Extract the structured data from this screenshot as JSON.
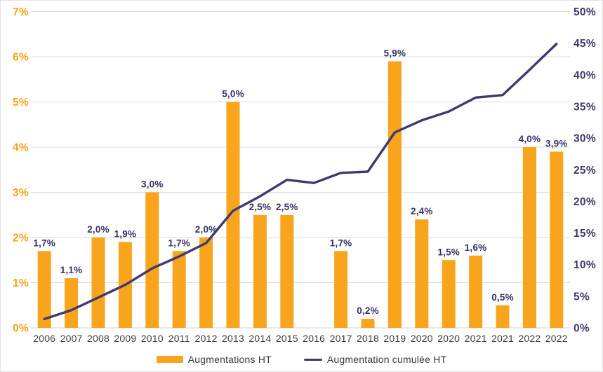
{
  "chart_data": {
    "type": "bar+line",
    "categories": [
      "2006",
      "2007",
      "2008",
      "2009",
      "2010",
      "2011",
      "2012",
      "2013",
      "2014",
      "2015",
      "2016",
      "2017",
      "2018",
      "2019",
      "2020",
      "2020",
      "2021",
      "2021",
      "2022",
      "2022"
    ],
    "series": [
      {
        "name": "Augmentations HT",
        "type": "bar",
        "axis": "left",
        "values": [
          1.7,
          1.1,
          2.0,
          1.9,
          3.0,
          1.7,
          2.0,
          5.0,
          2.5,
          2.5,
          0,
          1.7,
          0.2,
          5.9,
          2.4,
          1.5,
          1.6,
          0.5,
          4.0,
          3.9
        ],
        "data_labels": [
          "1,7%",
          "1,1%",
          "2,0%",
          "1,9%",
          "3,0%",
          "1,7%",
          "2,0%",
          "5,0%",
          "2,5%",
          "2,5%",
          "",
          "1,7%",
          "0,2%",
          "5,9%",
          "2,4%",
          "1,5%",
          "1,6%",
          "0,5%",
          "4,0%",
          "3,9%"
        ]
      },
      {
        "name": "Augmentation cumulée HT",
        "type": "line",
        "axis": "right",
        "values": [
          1.4,
          2.8,
          4.8,
          6.8,
          9.4,
          11.3,
          13.4,
          18.5,
          20.8,
          23.4,
          22.9,
          24.5,
          24.7,
          30.9,
          32.8,
          34.2,
          36.4,
          36.8,
          40.8,
          44.9
        ]
      }
    ],
    "left_axis": {
      "min": 0,
      "max": 7,
      "tick_labels": [
        "0%",
        "1%",
        "2%",
        "3%",
        "4%",
        "5%",
        "6%",
        "7%"
      ]
    },
    "right_axis": {
      "min": 0,
      "max": 50,
      "tick_labels": [
        "0%",
        "5%",
        "10%",
        "15%",
        "20%",
        "25%",
        "30%",
        "35%",
        "40%",
        "45%",
        "50%"
      ]
    },
    "grid": "horizontal-only",
    "legend_position": "bottom-center",
    "title": "",
    "xlabel": "",
    "ylabel": ""
  },
  "legend": {
    "bar_label": "Augmentations HT",
    "line_label": "Augmentation cumulée HT"
  },
  "colors": {
    "bar_orange": "#F8A41D",
    "line_navy": "#3E3A6E",
    "data_label_navy": "#35316B",
    "left_tick_orange": "#F5A21B",
    "right_tick_navy": "#3B3869",
    "x_label_gray": "#3A3A3A",
    "gridline": "#DBDBDB",
    "baseline": "#D3D3D3"
  }
}
